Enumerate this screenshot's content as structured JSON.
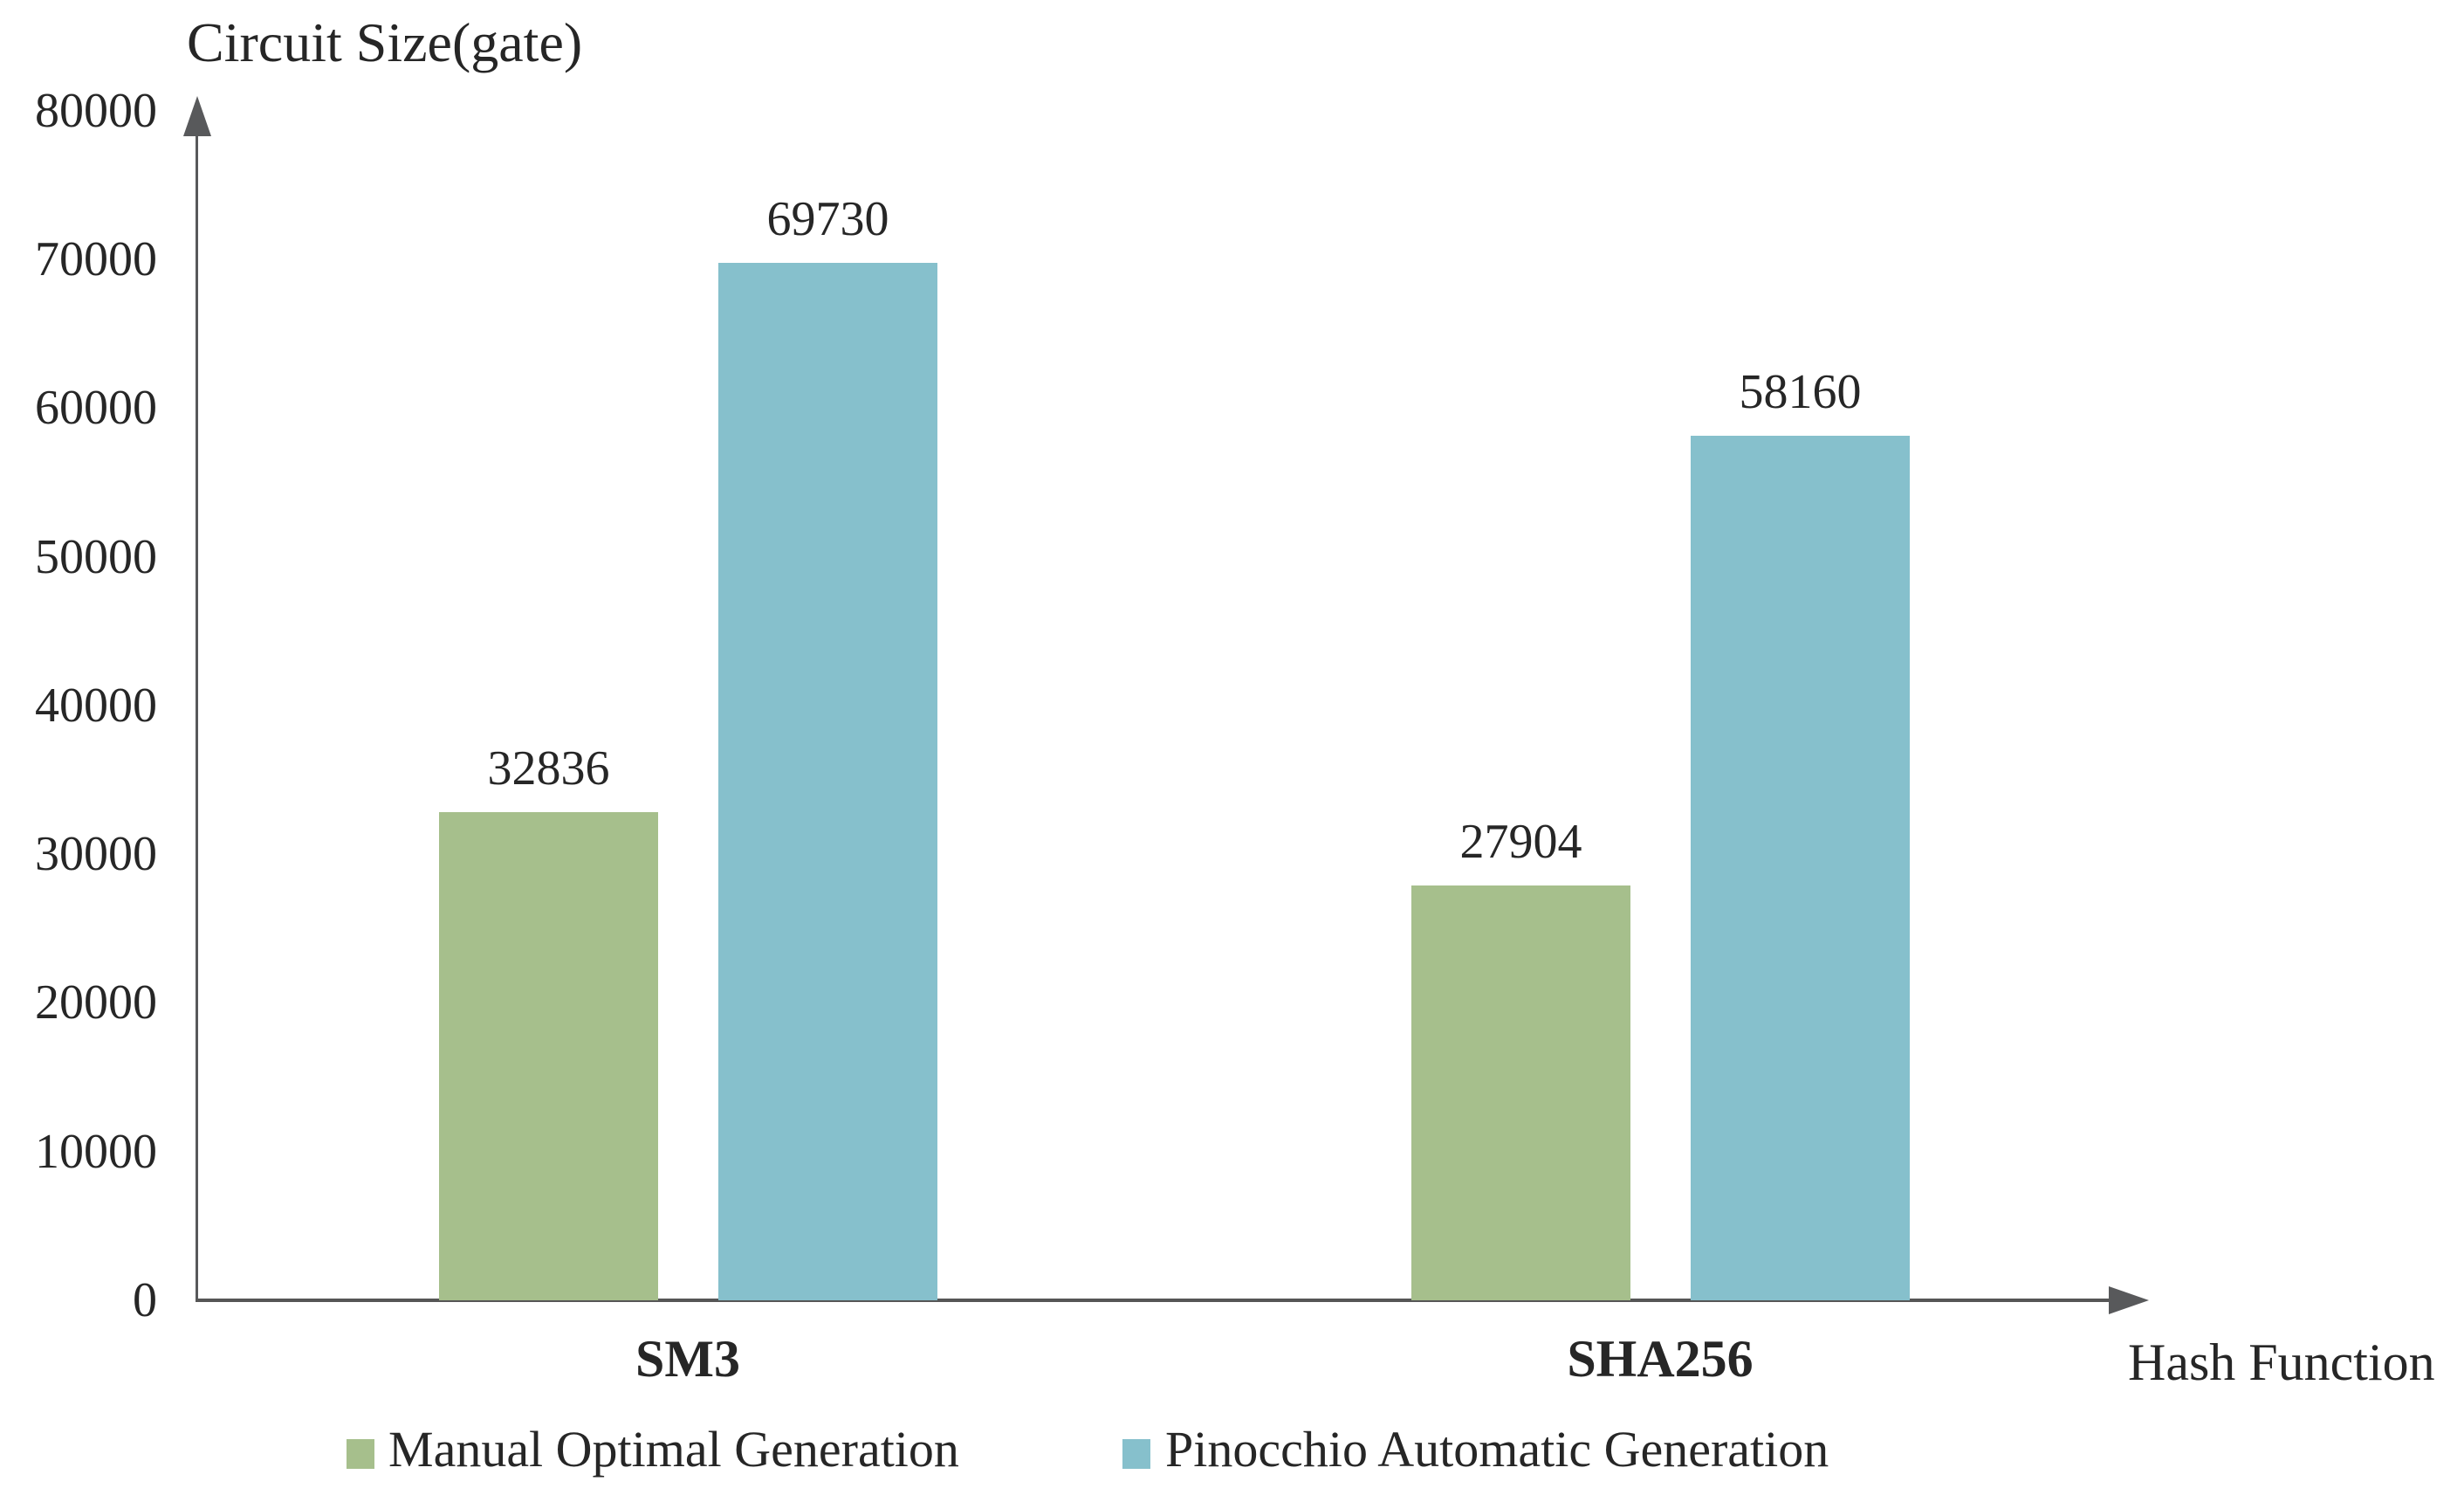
{
  "chart_data": {
    "type": "bar",
    "title": "Circuit Size(gate)",
    "xlabel": "Hash Function",
    "ylabel": "Circuit Size(gate)",
    "categories": [
      "SM3",
      "SHA256"
    ],
    "series": [
      {
        "name": "Manual Optimal Generation",
        "color": "#a6bf8c",
        "values": [
          32836,
          27904
        ]
      },
      {
        "name": "Pinocchio Automatic Generation",
        "color": "#86c0cc",
        "values": [
          69730,
          58160
        ]
      }
    ],
    "ylim": [
      0,
      80000
    ],
    "ytick_step": 10000,
    "yticks": [
      0,
      10000,
      20000,
      30000,
      40000,
      50000,
      60000,
      70000,
      80000
    ],
    "bar_value_labels": [
      "32836",
      "69730",
      "27904",
      "58160"
    ],
    "grid": false,
    "legend_position": "bottom",
    "colors": {
      "axis": "#58595b",
      "text": "#262626",
      "background": "#ffffff"
    }
  }
}
